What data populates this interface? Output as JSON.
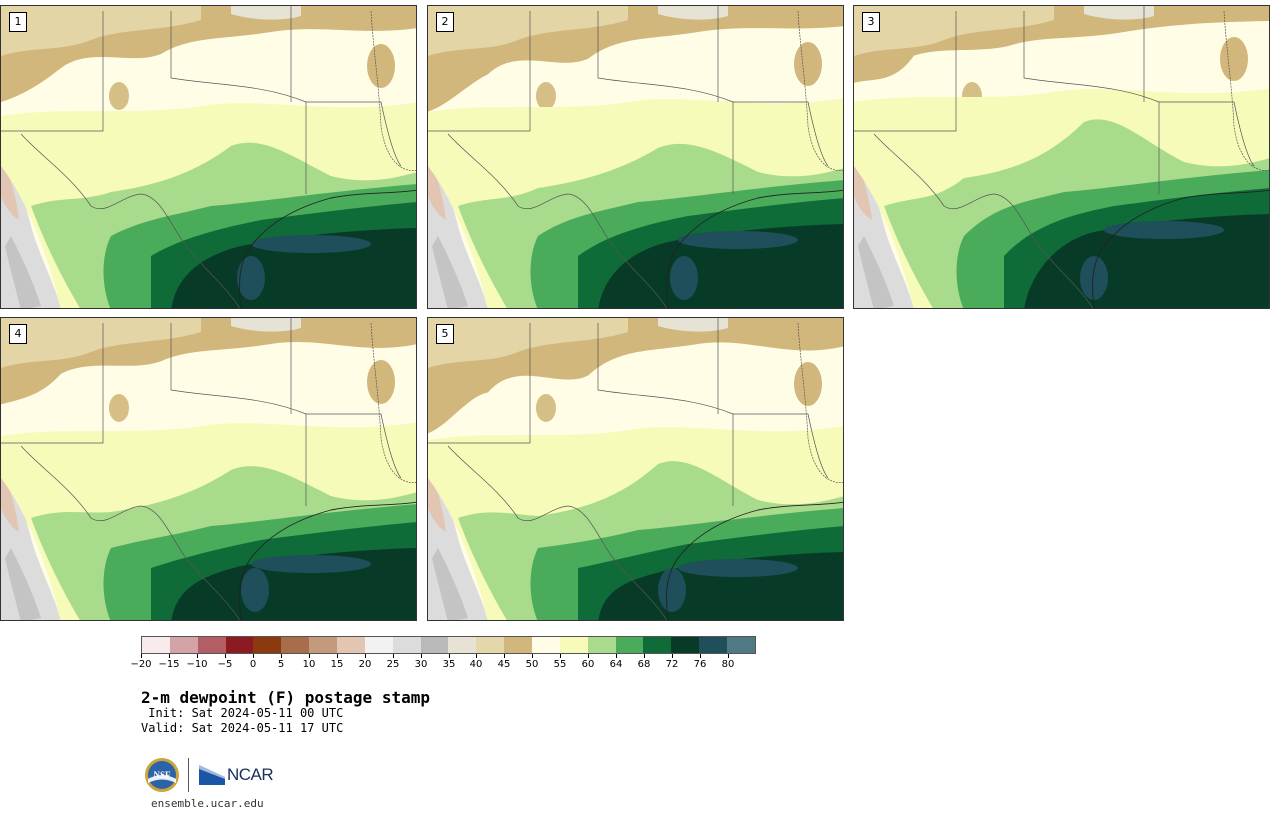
{
  "panels": [
    {
      "label": "1"
    },
    {
      "label": "2"
    },
    {
      "label": "3"
    },
    {
      "label": "4"
    },
    {
      "label": "5"
    }
  ],
  "colorbar": {
    "colors": [
      "#f7eceb",
      "#d4a3a8",
      "#b35e64",
      "#8b1a22",
      "#8b3a10",
      "#a86d4a",
      "#c49a7c",
      "#e2c6b3",
      "#f2f2f2",
      "#dcdcdc",
      "#b9b9b9",
      "#e6e2d4",
      "#e4d8ab",
      "#d2b77c",
      "#fffde6",
      "#f7fbb9",
      "#a8db8c",
      "#4aab5b",
      "#0f6b38",
      "#083b27",
      "#1e4f5b",
      "#4f7a85"
    ],
    "tick_labels": [
      "−20",
      "−15",
      "−10",
      "−5",
      "0",
      "5",
      "10",
      "15",
      "20",
      "25",
      "30",
      "35",
      "40",
      "45",
      "50",
      "55",
      "60",
      "64",
      "68",
      "72",
      "76",
      "80"
    ]
  },
  "title": "2-m dewpoint (F) postage stamp",
  "init": " Init: Sat 2024-05-11 00 UTC",
  "valid": "Valid: Sat 2024-05-11 17 UTC",
  "logos": {
    "nsf": "NSF",
    "ncar": "NCAR"
  },
  "site": "ensemble.ucar.edu"
}
